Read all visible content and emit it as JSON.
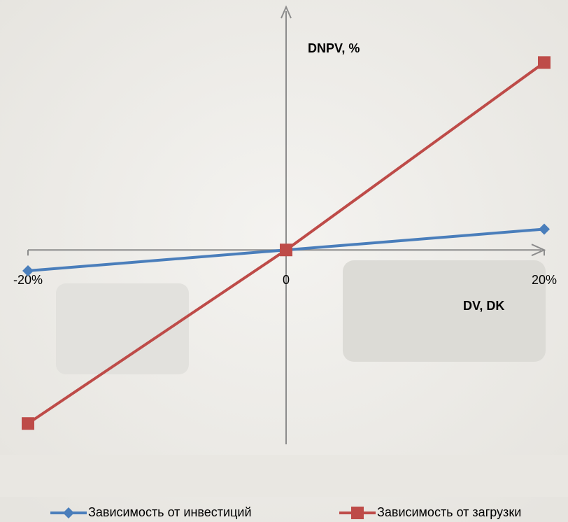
{
  "chart_data": {
    "type": "line",
    "x_label": "DV, DK",
    "y_label": "DNPV, %",
    "categories": [
      "-20%",
      "0",
      "20%"
    ],
    "series": [
      {
        "name": "Зависимость от инвестиций",
        "color": "#4a7ebb",
        "marker": "diamond",
        "values": [
          -3,
          0,
          3
        ]
      },
      {
        "name": "Зависимость от загрузки",
        "color": "#be4b48",
        "marker": "square",
        "values": [
          -25,
          0,
          27
        ]
      }
    ],
    "ylim": [
      -28,
      35
    ]
  }
}
